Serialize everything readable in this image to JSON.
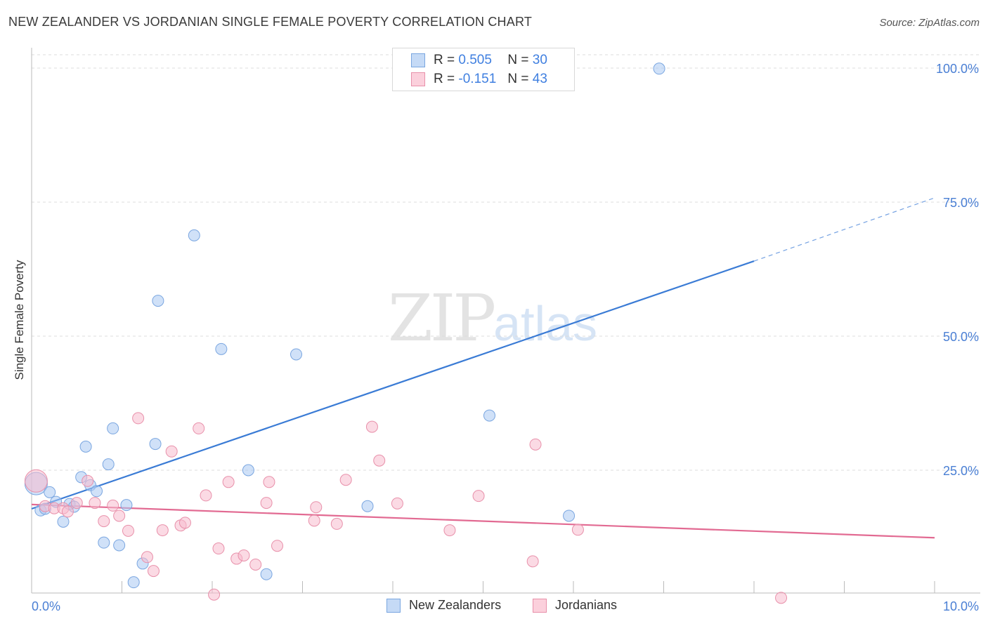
{
  "title": "NEW ZEALANDER VS JORDANIAN SINGLE FEMALE POVERTY CORRELATION CHART",
  "source": "Source: ZipAtlas.com",
  "watermark": {
    "zip": "ZIP",
    "atlas": "atlas"
  },
  "legend": {
    "r_label": "R =",
    "n_label": "N =",
    "series": [
      {
        "name": "New Zealanders",
        "r": "0.505",
        "n": "30",
        "color": "#a9c8f3",
        "edge": "#7aa6e0"
      },
      {
        "name": "Jordanians",
        "r": "-0.151",
        "n": "43",
        "color": "#f8bccd",
        "edge": "#e890aa"
      }
    ]
  },
  "chart_data": {
    "type": "scatter",
    "title": "NEW ZEALANDER VS JORDANIAN SINGLE FEMALE POVERTY CORRELATION CHART",
    "xlabel": "",
    "ylabel": "Single Female Poverty",
    "xlim": [
      0,
      10
    ],
    "ylim": [
      0,
      100
    ],
    "x_tick_labels": [
      "0.0%",
      "10.0%"
    ],
    "y_tick_labels": [
      "100.0%",
      "75.0%",
      "50.0%",
      "25.0%"
    ],
    "y_ticks": [
      100,
      75,
      50,
      25
    ],
    "series": [
      {
        "name": "New Zealanders",
        "color": "#3a7bd5",
        "fill": "#a9c8f3",
        "points": [
          [
            0.05,
            22.5
          ],
          [
            0.1,
            17.5
          ],
          [
            0.15,
            17.8
          ],
          [
            0.2,
            20.9
          ],
          [
            0.27,
            19.1
          ],
          [
            0.35,
            15.4
          ],
          [
            0.42,
            18.7
          ],
          [
            0.47,
            18.2
          ],
          [
            0.55,
            23.7
          ],
          [
            0.6,
            29.4
          ],
          [
            0.65,
            22.2
          ],
          [
            0.72,
            21.1
          ],
          [
            0.8,
            11.5
          ],
          [
            0.85,
            26.1
          ],
          [
            0.9,
            32.8
          ],
          [
            0.97,
            11
          ],
          [
            1.05,
            18.5
          ],
          [
            1.13,
            4.1
          ],
          [
            1.23,
            7.6
          ],
          [
            1.37,
            29.9
          ],
          [
            1.4,
            56.6
          ],
          [
            1.8,
            68.8
          ],
          [
            2.1,
            47.6
          ],
          [
            2.4,
            25
          ],
          [
            2.6,
            5.6
          ],
          [
            2.93,
            46.6
          ],
          [
            3.72,
            18.3
          ],
          [
            5.07,
            35.2
          ],
          [
            5.95,
            16.5
          ],
          [
            6.95,
            99.9
          ]
        ],
        "trend": {
          "x": [
            0,
            8
          ],
          "y": [
            17.8,
            64
          ],
          "dashed_to": [
            10,
            75.8
          ]
        }
      },
      {
        "name": "Jordanians",
        "color": "#e26a92",
        "fill": "#f8bccd",
        "points": [
          [
            0.05,
            23
          ],
          [
            0.15,
            18.3
          ],
          [
            0.25,
            17.9
          ],
          [
            0.35,
            17.9
          ],
          [
            0.4,
            17.3
          ],
          [
            0.5,
            18.9
          ],
          [
            0.62,
            23
          ],
          [
            0.7,
            18.9
          ],
          [
            0.8,
            15.5
          ],
          [
            0.9,
            18.4
          ],
          [
            0.97,
            16.5
          ],
          [
            1.07,
            13.7
          ],
          [
            1.18,
            34.7
          ],
          [
            1.28,
            8.8
          ],
          [
            1.35,
            6.2
          ],
          [
            1.45,
            13.8
          ],
          [
            1.55,
            28.5
          ],
          [
            1.65,
            14.7
          ],
          [
            1.7,
            15.2
          ],
          [
            1.85,
            32.8
          ],
          [
            1.93,
            20.3
          ],
          [
            2.02,
            1.8
          ],
          [
            2.07,
            10.4
          ],
          [
            2.18,
            22.8
          ],
          [
            2.27,
            8.5
          ],
          [
            2.35,
            9.1
          ],
          [
            2.48,
            7.4
          ],
          [
            2.6,
            18.9
          ],
          [
            2.63,
            22.8
          ],
          [
            2.72,
            10.9
          ],
          [
            3.13,
            15.6
          ],
          [
            3.15,
            18.1
          ],
          [
            3.38,
            15
          ],
          [
            3.48,
            23.2
          ],
          [
            3.77,
            33.1
          ],
          [
            3.85,
            26.8
          ],
          [
            4.05,
            18.8
          ],
          [
            4.63,
            13.8
          ],
          [
            4.95,
            20.2
          ],
          [
            5.55,
            8
          ],
          [
            5.58,
            29.8
          ],
          [
            6.05,
            13.9
          ],
          [
            8.3,
            1.2
          ]
        ],
        "trend": {
          "x": [
            0,
            10
          ],
          "y": [
            18.6,
            12.4
          ]
        }
      }
    ]
  }
}
